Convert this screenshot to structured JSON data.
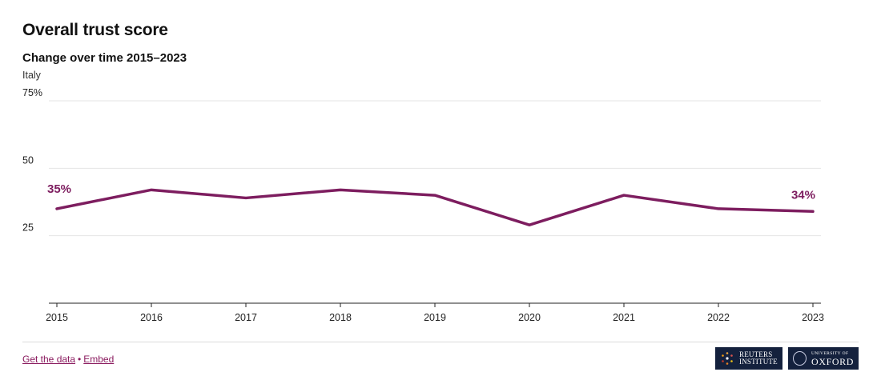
{
  "title": "Overall trust score",
  "subtitle": "Change over time 2015–2023",
  "country": "Italy",
  "chart_data": {
    "type": "line",
    "x": [
      "2015",
      "2016",
      "2017",
      "2018",
      "2019",
      "2020",
      "2021",
      "2022",
      "2023"
    ],
    "series": [
      {
        "values": [
          35,
          42,
          39,
          42,
          40,
          29,
          40,
          35,
          34
        ],
        "color": "#7d1d5f"
      }
    ],
    "ylim": [
      0,
      75
    ],
    "yticks": [
      25,
      50,
      75
    ],
    "ytick_labels": [
      "25",
      "50",
      "75%"
    ],
    "end_labels": [
      "35%",
      "34%"
    ],
    "grid": true
  },
  "footer": {
    "get_data_label": "Get the data",
    "separator": "•",
    "embed_label": "Embed",
    "logo_reuters": [
      "REUTERS",
      "INSTITUTE"
    ],
    "logo_oxford": [
      "UNIVERSITY OF",
      "OXFORD"
    ]
  }
}
